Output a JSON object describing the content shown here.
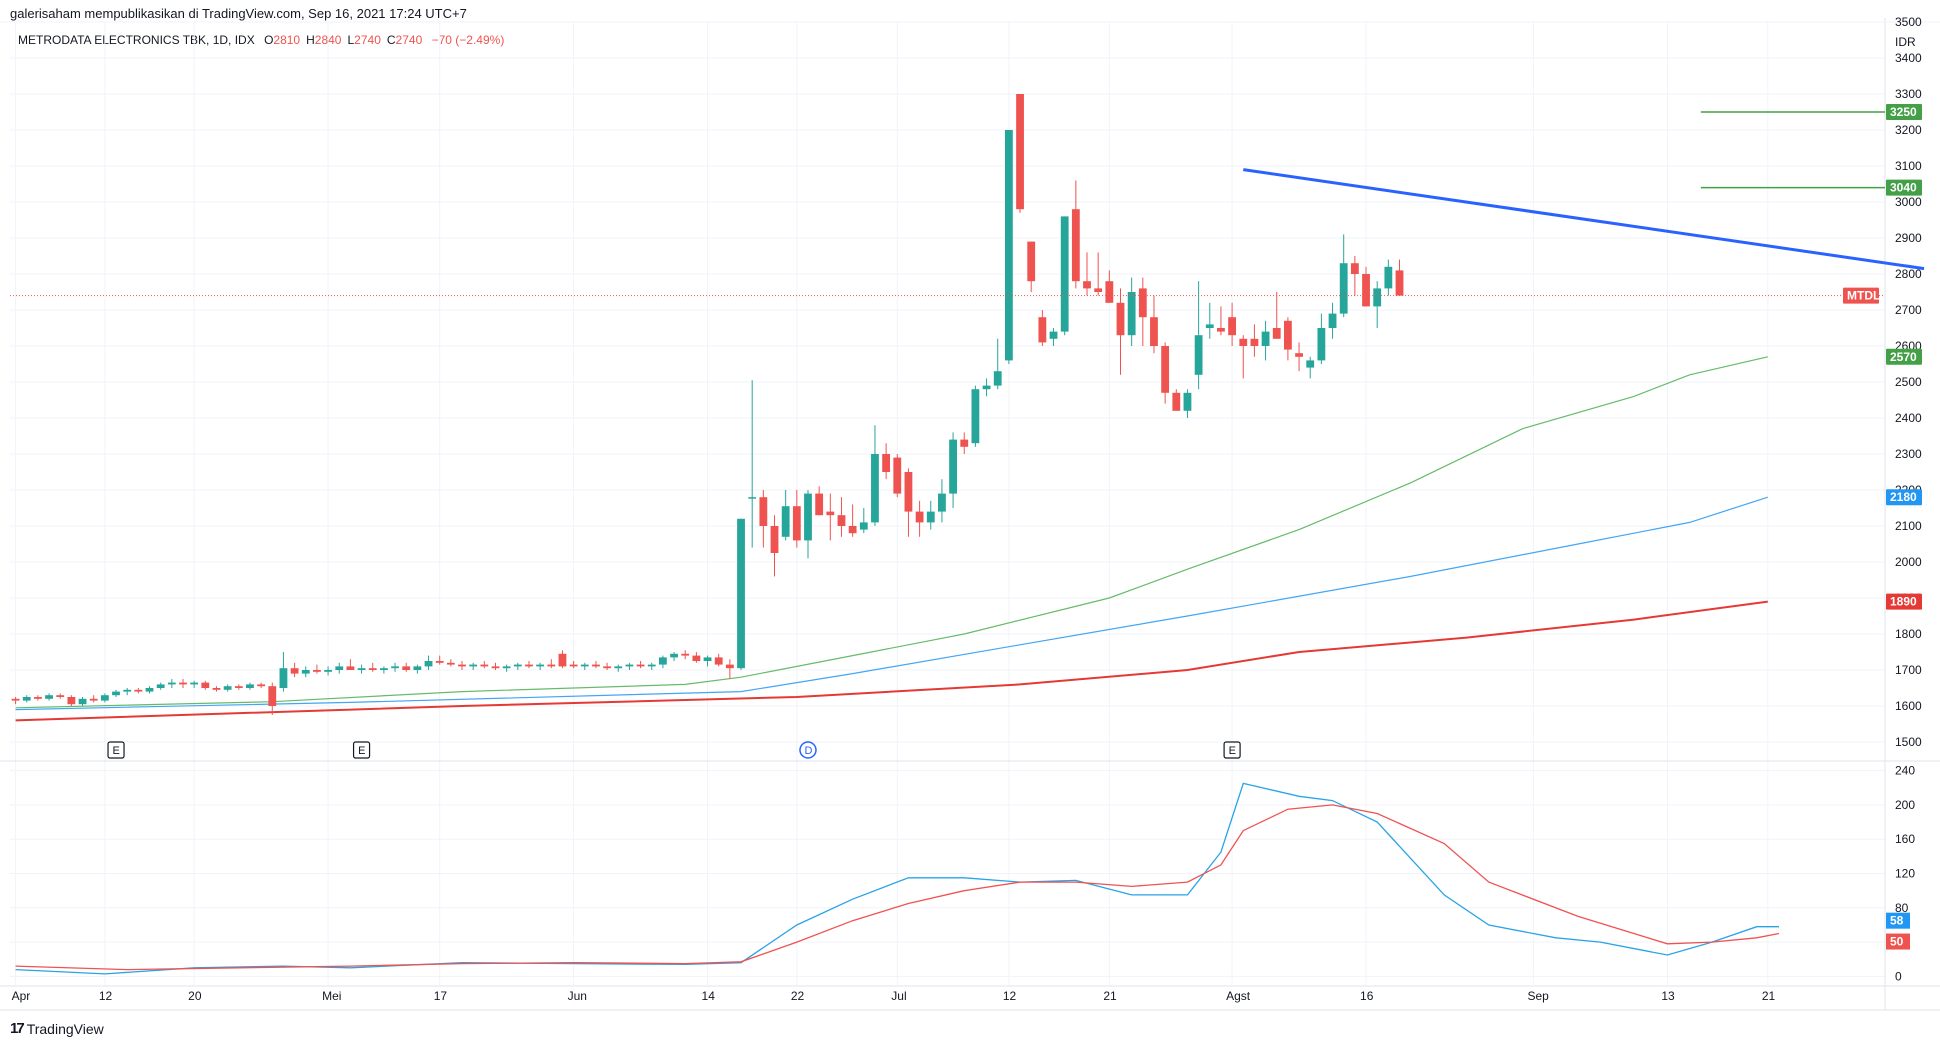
{
  "header": {
    "publisher": "galerisaham mempublikasikan di TradingView.com, Sep 16, 2021 17:24 UTC+7",
    "symbol": "METRODATA ELECTRONICS TBK, 1D, IDX",
    "ohlc": [
      {
        "label": "O",
        "value": "2810"
      },
      {
        "label": "H",
        "value": "2840"
      },
      {
        "label": "L",
        "value": "2740"
      },
      {
        "label": "C",
        "value": "2740"
      }
    ],
    "change": "−70 (−2.49%)"
  },
  "brand": {
    "logo": "17",
    "name": "TradingView"
  },
  "colors": {
    "up": "#26a69a",
    "down": "#ef5350",
    "ma_short": "#66bb6a",
    "ma_mid": "#42a5f5",
    "ma_long": "#e53935",
    "trend": "#2962ff",
    "grid": "#f0f3fa"
  },
  "chart_data": [
    {
      "type": "candlestick",
      "currency": "IDR",
      "ylim": [
        1450,
        3500
      ],
      "y_ticks": [
        "3500",
        "3400",
        "3300",
        "3200",
        "3100",
        "3000",
        "2900",
        "2800",
        "2700",
        "2600",
        "2500",
        "2400",
        "2300",
        "2200",
        "2100",
        "2000",
        "1900",
        "1800",
        "1700",
        "1600",
        "1500"
      ],
      "x_ticks": [
        "Apr",
        "12",
        "20",
        "Mei",
        "17",
        "Jun",
        "14",
        "22",
        "Jul",
        "12",
        "21",
        "Agst",
        "16",
        "Sep",
        "13",
        "21"
      ],
      "x_tick_index": [
        0,
        8,
        16,
        28,
        38,
        50,
        62,
        70,
        79,
        89,
        98,
        109,
        121,
        136,
        148,
        157
      ],
      "total_slots": 168,
      "candles": [
        [
          1620,
          1625,
          1605,
          1615
        ],
        [
          1615,
          1630,
          1610,
          1625
        ],
        [
          1625,
          1630,
          1615,
          1620
        ],
        [
          1620,
          1635,
          1615,
          1630
        ],
        [
          1630,
          1635,
          1620,
          1625
        ],
        [
          1625,
          1630,
          1600,
          1605
        ],
        [
          1605,
          1625,
          1600,
          1620
        ],
        [
          1620,
          1630,
          1610,
          1615
        ],
        [
          1615,
          1635,
          1610,
          1630
        ],
        [
          1630,
          1645,
          1625,
          1640
        ],
        [
          1640,
          1650,
          1630,
          1645
        ],
        [
          1645,
          1650,
          1635,
          1640
        ],
        [
          1640,
          1655,
          1635,
          1650
        ],
        [
          1650,
          1665,
          1645,
          1660
        ],
        [
          1660,
          1675,
          1650,
          1665
        ],
        [
          1665,
          1675,
          1650,
          1660
        ],
        [
          1660,
          1670,
          1650,
          1665
        ],
        [
          1665,
          1670,
          1645,
          1650
        ],
        [
          1650,
          1655,
          1640,
          1645
        ],
        [
          1645,
          1660,
          1640,
          1655
        ],
        [
          1655,
          1660,
          1645,
          1650
        ],
        [
          1650,
          1665,
          1645,
          1660
        ],
        [
          1660,
          1665,
          1650,
          1655
        ],
        [
          1655,
          1665,
          1575,
          1600
        ],
        [
          1650,
          1750,
          1640,
          1705
        ],
        [
          1705,
          1720,
          1680,
          1690
        ],
        [
          1690,
          1710,
          1680,
          1700
        ],
        [
          1700,
          1715,
          1690,
          1695
        ],
        [
          1695,
          1710,
          1685,
          1700
        ],
        [
          1700,
          1720,
          1690,
          1710
        ],
        [
          1710,
          1730,
          1700,
          1700
        ],
        [
          1700,
          1715,
          1690,
          1705
        ],
        [
          1705,
          1720,
          1695,
          1700
        ],
        [
          1700,
          1710,
          1690,
          1705
        ],
        [
          1705,
          1720,
          1695,
          1710
        ],
        [
          1710,
          1720,
          1695,
          1700
        ],
        [
          1700,
          1715,
          1690,
          1710
        ],
        [
          1710,
          1740,
          1700,
          1725
        ],
        [
          1725,
          1740,
          1715,
          1720
        ],
        [
          1720,
          1730,
          1710,
          1715
        ],
        [
          1715,
          1725,
          1700,
          1710
        ],
        [
          1710,
          1720,
          1700,
          1715
        ],
        [
          1715,
          1725,
          1705,
          1710
        ],
        [
          1710,
          1720,
          1700,
          1705
        ],
        [
          1705,
          1715,
          1695,
          1710
        ],
        [
          1710,
          1720,
          1700,
          1715
        ],
        [
          1715,
          1725,
          1705,
          1710
        ],
        [
          1710,
          1720,
          1700,
          1715
        ],
        [
          1715,
          1730,
          1705,
          1710
        ],
        [
          1745,
          1755,
          1705,
          1710
        ],
        [
          1715,
          1725,
          1705,
          1710
        ],
        [
          1710,
          1720,
          1700,
          1715
        ],
        [
          1715,
          1725,
          1705,
          1710
        ],
        [
          1710,
          1720,
          1700,
          1705
        ],
        [
          1705,
          1715,
          1695,
          1710
        ],
        [
          1710,
          1720,
          1700,
          1715
        ],
        [
          1715,
          1725,
          1705,
          1710
        ],
        [
          1710,
          1720,
          1700,
          1715
        ],
        [
          1715,
          1740,
          1705,
          1735
        ],
        [
          1735,
          1750,
          1725,
          1745
        ],
        [
          1745,
          1755,
          1730,
          1740
        ],
        [
          1740,
          1750,
          1720,
          1725
        ],
        [
          1725,
          1740,
          1710,
          1735
        ],
        [
          1735,
          1745,
          1710,
          1715
        ],
        [
          1715,
          1730,
          1675,
          1705
        ],
        [
          1705,
          2120,
          1700,
          2120
        ],
        [
          2180,
          2505,
          2040,
          2180
        ],
        [
          2180,
          2200,
          2040,
          2100
        ],
        [
          2100,
          2130,
          1960,
          2025
        ],
        [
          2070,
          2200,
          2060,
          2155
        ],
        [
          2155,
          2200,
          2040,
          2060
        ],
        [
          2060,
          2200,
          2010,
          2190
        ],
        [
          2190,
          2210,
          2130,
          2130
        ],
        [
          2140,
          2190,
          2060,
          2130
        ],
        [
          2130,
          2180,
          2070,
          2100
        ],
        [
          2100,
          2160,
          2070,
          2080
        ],
        [
          2090,
          2150,
          2080,
          2110
        ],
        [
          2110,
          2380,
          2100,
          2300
        ],
        [
          2300,
          2330,
          2230,
          2250
        ],
        [
          2290,
          2300,
          2180,
          2190
        ],
        [
          2250,
          2260,
          2070,
          2140
        ],
        [
          2140,
          2170,
          2070,
          2110
        ],
        [
          2110,
          2170,
          2090,
          2140
        ],
        [
          2140,
          2230,
          2110,
          2190
        ],
        [
          2190,
          2360,
          2150,
          2340
        ],
        [
          2340,
          2360,
          2300,
          2320
        ],
        [
          2330,
          2490,
          2320,
          2480
        ],
        [
          2480,
          2510,
          2460,
          2490
        ],
        [
          2490,
          2620,
          2480,
          2530
        ],
        [
          2560,
          3200,
          2550,
          3200
        ],
        [
          3300,
          3300,
          2970,
          2980
        ],
        [
          2890,
          2890,
          2750,
          2780
        ],
        [
          2680,
          2700,
          2600,
          2610
        ],
        [
          2620,
          2650,
          2600,
          2640
        ],
        [
          2640,
          2960,
          2630,
          2960
        ],
        [
          2980,
          3060,
          2760,
          2780
        ],
        [
          2780,
          2860,
          2740,
          2760
        ],
        [
          2760,
          2860,
          2740,
          2750
        ],
        [
          2780,
          2810,
          2720,
          2720
        ],
        [
          2720,
          2760,
          2520,
          2630
        ],
        [
          2630,
          2790,
          2600,
          2750
        ],
        [
          2760,
          2790,
          2600,
          2680
        ],
        [
          2680,
          2740,
          2580,
          2600
        ],
        [
          2600,
          2610,
          2440,
          2470
        ],
        [
          2470,
          2480,
          2420,
          2420
        ],
        [
          2420,
          2480,
          2400,
          2470
        ],
        [
          2520,
          2780,
          2480,
          2630
        ],
        [
          2650,
          2720,
          2620,
          2660
        ],
        [
          2650,
          2710,
          2630,
          2640
        ],
        [
          2680,
          2720,
          2600,
          2630
        ],
        [
          2620,
          2630,
          2510,
          2600
        ],
        [
          2620,
          2660,
          2570,
          2600
        ],
        [
          2600,
          2670,
          2560,
          2640
        ],
        [
          2650,
          2750,
          2620,
          2620
        ],
        [
          2670,
          2680,
          2560,
          2590
        ],
        [
          2580,
          2610,
          2530,
          2570
        ],
        [
          2540,
          2570,
          2510,
          2560
        ],
        [
          2560,
          2690,
          2550,
          2650
        ],
        [
          2650,
          2720,
          2620,
          2690
        ],
        [
          2690,
          2910,
          2680,
          2830
        ],
        [
          2830,
          2850,
          2740,
          2800
        ],
        [
          2800,
          2820,
          2710,
          2710
        ],
        [
          2710,
          2780,
          2650,
          2760
        ],
        [
          2760,
          2840,
          2740,
          2820
        ],
        [
          2810,
          2840,
          2740,
          2740
        ]
      ],
      "candle_slot_start": 0,
      "moving_averages": [
        {
          "color": "#66bb6a",
          "label": "2570",
          "points": [
            [
              0,
              1595
            ],
            [
              23,
              1612
            ],
            [
              40,
              1640
            ],
            [
              60,
              1660
            ],
            [
              65,
              1680
            ],
            [
              75,
              1740
            ],
            [
              85,
              1800
            ],
            [
              98,
              1900
            ],
            [
              105,
              1980
            ],
            [
              115,
              2090
            ],
            [
              125,
              2220
            ],
            [
              135,
              2370
            ],
            [
              145,
              2460
            ],
            [
              150,
              2520
            ],
            [
              157,
              2570
            ]
          ]
        },
        {
          "color": "#42a5f5",
          "label": "2180",
          "points": [
            [
              0,
              1590
            ],
            [
              30,
              1610
            ],
            [
              65,
              1640
            ],
            [
              75,
              1690
            ],
            [
              90,
              1770
            ],
            [
              105,
              1850
            ],
            [
              125,
              1960
            ],
            [
              140,
              2050
            ],
            [
              150,
              2110
            ],
            [
              157,
              2180
            ]
          ]
        },
        {
          "color": "#e53935",
          "label": "1890",
          "points": [
            [
              0,
              1560
            ],
            [
              40,
              1600
            ],
            [
              70,
              1625
            ],
            [
              90,
              1660
            ],
            [
              105,
              1700
            ],
            [
              115,
              1750
            ],
            [
              130,
              1790
            ],
            [
              145,
              1840
            ],
            [
              157,
              1890
            ]
          ]
        }
      ],
      "trend_line": {
        "color": "#2962ff",
        "points": [
          [
            110,
            3090
          ],
          [
            171,
            2815
          ]
        ]
      },
      "horizontal_lines": [
        {
          "value": 3250,
          "label": "3250",
          "start": 151
        },
        {
          "value": 3040,
          "label": "3040",
          "start": 151
        }
      ],
      "last_price": {
        "value": 2740,
        "label": "MTDL"
      },
      "events": [
        {
          "label": "E",
          "index": 9
        },
        {
          "label": "E",
          "index": 31
        },
        {
          "label": "D",
          "index": 71
        },
        {
          "label": "E",
          "index": 109
        }
      ]
    },
    {
      "type": "line",
      "ylim": [
        -10,
        250
      ],
      "y_ticks": [
        "240",
        "200",
        "160",
        "120",
        "80",
        "40",
        "0"
      ],
      "series": [
        {
          "color": "#29a3e8",
          "label": "58",
          "points": [
            [
              0,
              8
            ],
            [
              8,
              3
            ],
            [
              16,
              10
            ],
            [
              24,
              12
            ],
            [
              30,
              10
            ],
            [
              40,
              16
            ],
            [
              50,
              15
            ],
            [
              60,
              14
            ],
            [
              65,
              16
            ],
            [
              70,
              60
            ],
            [
              75,
              90
            ],
            [
              80,
              115
            ],
            [
              85,
              115
            ],
            [
              90,
              110
            ],
            [
              95,
              112
            ],
            [
              100,
              95
            ],
            [
              105,
              95
            ],
            [
              108,
              145
            ],
            [
              110,
              225
            ],
            [
              115,
              210
            ],
            [
              118,
              205
            ],
            [
              122,
              180
            ],
            [
              128,
              95
            ],
            [
              132,
              60
            ],
            [
              138,
              45
            ],
            [
              142,
              40
            ],
            [
              146,
              30
            ],
            [
              148,
              25
            ],
            [
              152,
              40
            ],
            [
              156,
              58
            ],
            [
              158,
              58
            ]
          ]
        },
        {
          "color": "#ef5350",
          "label": "50",
          "points": [
            [
              0,
              12
            ],
            [
              10,
              8
            ],
            [
              20,
              10
            ],
            [
              30,
              12
            ],
            [
              40,
              15
            ],
            [
              50,
              16
            ],
            [
              60,
              15
            ],
            [
              65,
              17
            ],
            [
              70,
              40
            ],
            [
              75,
              65
            ],
            [
              80,
              85
            ],
            [
              85,
              100
            ],
            [
              90,
              110
            ],
            [
              95,
              110
            ],
            [
              100,
              105
            ],
            [
              105,
              110
            ],
            [
              108,
              130
            ],
            [
              110,
              170
            ],
            [
              114,
              195
            ],
            [
              118,
              200
            ],
            [
              122,
              190
            ],
            [
              128,
              155
            ],
            [
              132,
              110
            ],
            [
              140,
              70
            ],
            [
              148,
              38
            ],
            [
              152,
              40
            ],
            [
              156,
              45
            ],
            [
              158,
              50
            ]
          ]
        }
      ]
    }
  ]
}
